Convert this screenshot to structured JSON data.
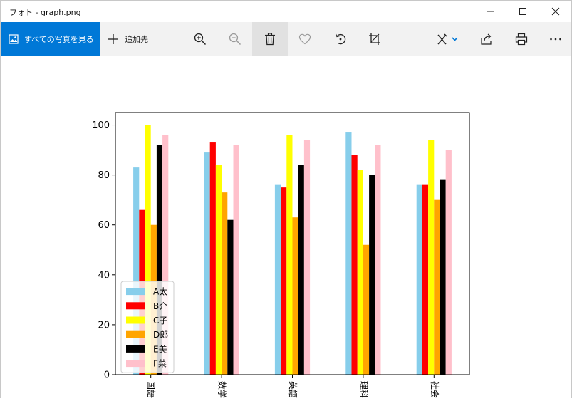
{
  "window": {
    "title": "フォト - graph.png"
  },
  "toolbar": {
    "all_photos_label": "すべての写真を見る",
    "add_to_label": "追加先"
  },
  "colors": {
    "accent": "#0078d7",
    "series": [
      "#87ceeb",
      "#ff0000",
      "#ffff00",
      "#ffa500",
      "#000000",
      "#ffc0cb"
    ]
  },
  "icons": [
    "minimize-icon",
    "maximize-icon",
    "close-icon",
    "photos-icon",
    "plus-icon",
    "zoom-in-icon",
    "zoom-out-icon",
    "delete-icon",
    "favorite-icon",
    "rotate-icon",
    "crop-icon",
    "edit-icon",
    "share-icon",
    "print-icon",
    "more-icon"
  ],
  "chart_data": {
    "type": "bar",
    "categories": [
      "国語",
      "数学",
      "英語",
      "理科",
      "社会"
    ],
    "series": [
      {
        "name": "A太",
        "values": [
          83,
          89,
          76,
          97,
          76
        ]
      },
      {
        "name": "B介",
        "values": [
          66,
          93,
          75,
          88,
          76
        ]
      },
      {
        "name": "C子",
        "values": [
          100,
          84,
          96,
          82,
          94
        ]
      },
      {
        "name": "D郎",
        "values": [
          60,
          73,
          63,
          52,
          70
        ]
      },
      {
        "name": "E美",
        "values": [
          92,
          62,
          84,
          80,
          78
        ]
      },
      {
        "name": "F菜",
        "values": [
          96,
          92,
          94,
          92,
          90
        ]
      }
    ],
    "ylim": [
      0,
      105
    ],
    "yticks": [
      0,
      20,
      40,
      60,
      80,
      100
    ],
    "legend_position": "lower-left",
    "grid": false
  }
}
